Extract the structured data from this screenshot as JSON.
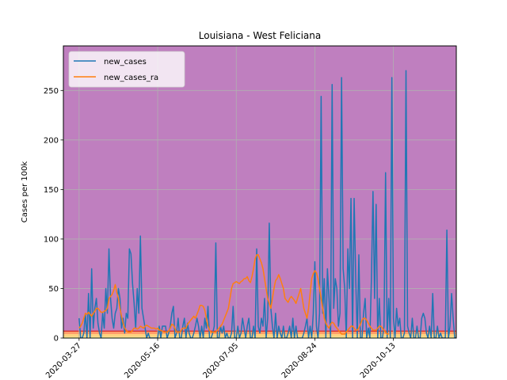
{
  "chart_data": {
    "type": "line",
    "title": "Louisiana - West Feliciana",
    "xlabel": "",
    "ylabel": "Cases per 100k",
    "x_start_date": "2020-03-27",
    "x_tick_labels": [
      "2020-03-27",
      "2020-05-16",
      "2020-07-05",
      "2020-08-24",
      "2020-10-13"
    ],
    "x_tick_days": [
      0,
      50,
      100,
      150,
      200
    ],
    "xlim_days": [
      -10,
      240
    ],
    "ylim": [
      0,
      295
    ],
    "y_ticks": [
      0,
      50,
      100,
      150,
      200,
      250
    ],
    "grid": true,
    "legend_position": "upper-left",
    "background_bands": [
      {
        "from": 0,
        "to": 1,
        "color": "#ffff99"
      },
      {
        "from": 1,
        "to": 4,
        "color": "#ffd27f"
      },
      {
        "from": 4,
        "to": 7,
        "color": "#ff9f6b"
      },
      {
        "from": 7,
        "to": 295,
        "color": "#bf7fbf"
      }
    ],
    "band_edge_color": "#d62728",
    "band_edge_value": 7,
    "series": [
      {
        "name": "new_cases",
        "color": "#1f77b4",
        "values": [
          20,
          0,
          0,
          5,
          25,
          0,
          45,
          0,
          70,
          10,
          30,
          40,
          15,
          5,
          0,
          25,
          10,
          50,
          25,
          90,
          40,
          20,
          10,
          25,
          30,
          50,
          40,
          10,
          20,
          5,
          25,
          20,
          90,
          85,
          55,
          35,
          10,
          50,
          25,
          103,
          30,
          20,
          10,
          0,
          5,
          0,
          0,
          0,
          0,
          0,
          0,
          12,
          0,
          12,
          12,
          12,
          0,
          5,
          12,
          25,
          32,
          0,
          5,
          20,
          0,
          0,
          12,
          20,
          0,
          15,
          5,
          0,
          0,
          5,
          12,
          20,
          12,
          0,
          12,
          0,
          20,
          10,
          32,
          0,
          0,
          5,
          12,
          96,
          0,
          0,
          12,
          5,
          12,
          0,
          5,
          0,
          0,
          5,
          32,
          0,
          0,
          12,
          0,
          5,
          20,
          10,
          0,
          12,
          20,
          0,
          0,
          12,
          0,
          90,
          12,
          5,
          20,
          12,
          40,
          0,
          20,
          116,
          30,
          12,
          0,
          25,
          0,
          12,
          5,
          0,
          12,
          0,
          0,
          5,
          12,
          0,
          20,
          0,
          12,
          0,
          0,
          0,
          0,
          5,
          12,
          20,
          0,
          12,
          0,
          25,
          77,
          12,
          0,
          25,
          244,
          25,
          60,
          0,
          70,
          40,
          0,
          256,
          30,
          60,
          50,
          12,
          25,
          263,
          70,
          50,
          0,
          90,
          50,
          141,
          0,
          141,
          60,
          0,
          84,
          0,
          0,
          25,
          40,
          0,
          10,
          0,
          60,
          148,
          40,
          135,
          0,
          40,
          0,
          0,
          12,
          167,
          0,
          40,
          0,
          263,
          20,
          0,
          30,
          12,
          20,
          0,
          0,
          5,
          270,
          12,
          5,
          0,
          20,
          0,
          0,
          12,
          0,
          0,
          20,
          25,
          20,
          5,
          0,
          12,
          0,
          45,
          0,
          0,
          12,
          0,
          5,
          0,
          0,
          0,
          109,
          0,
          12,
          45,
          20,
          0,
          0,
          51,
          0,
          0,
          5,
          0,
          45,
          0,
          0,
          5
        ],
        "start_day": 0
      },
      {
        "name": "new_cases_ra",
        "color": "#ff7f0e",
        "values": [
          10,
          12,
          15,
          20,
          25,
          24,
          26,
          24,
          22,
          25,
          27,
          30,
          30,
          28,
          26,
          26,
          27,
          28,
          30,
          40,
          42,
          44,
          48,
          54,
          46,
          40,
          30,
          22,
          15,
          10,
          8,
          6,
          6,
          6,
          8,
          10,
          10,
          9,
          10,
          12,
          11,
          10,
          12,
          13,
          12,
          11,
          10,
          10,
          10,
          9,
          10,
          8,
          8,
          7,
          6,
          6,
          6,
          7,
          10,
          14,
          13,
          10,
          6,
          6,
          6,
          8,
          10,
          10,
          10,
          14,
          16,
          18,
          20,
          22,
          20,
          24,
          28,
          33,
          33,
          32,
          28,
          20,
          12,
          8,
          6,
          6,
          6,
          6,
          8,
          10,
          12,
          14,
          18,
          22,
          26,
          30,
          40,
          50,
          55,
          56,
          57,
          56,
          55,
          57,
          58,
          60,
          60,
          62,
          58,
          56,
          62,
          70,
          80,
          84,
          84,
          80,
          76,
          70,
          60,
          50,
          40,
          35,
          30,
          40,
          50,
          58,
          60,
          64,
          60,
          55,
          50,
          40,
          38,
          36,
          40,
          42,
          40,
          38,
          35,
          40,
          45,
          50,
          40,
          30,
          25,
          20,
          30,
          45,
          60,
          65,
          68,
          66,
          60,
          50,
          40,
          30,
          20,
          15,
          12,
          10,
          14,
          16,
          15,
          12,
          10,
          8,
          6,
          4,
          4,
          4,
          6,
          8,
          10,
          12,
          12,
          10,
          8,
          8,
          10,
          14,
          18,
          20,
          20,
          18,
          15,
          12,
          10,
          8,
          8,
          8,
          10,
          12,
          12,
          10,
          8,
          6,
          4,
          4
        ],
        "start_day": 0
      }
    ]
  }
}
